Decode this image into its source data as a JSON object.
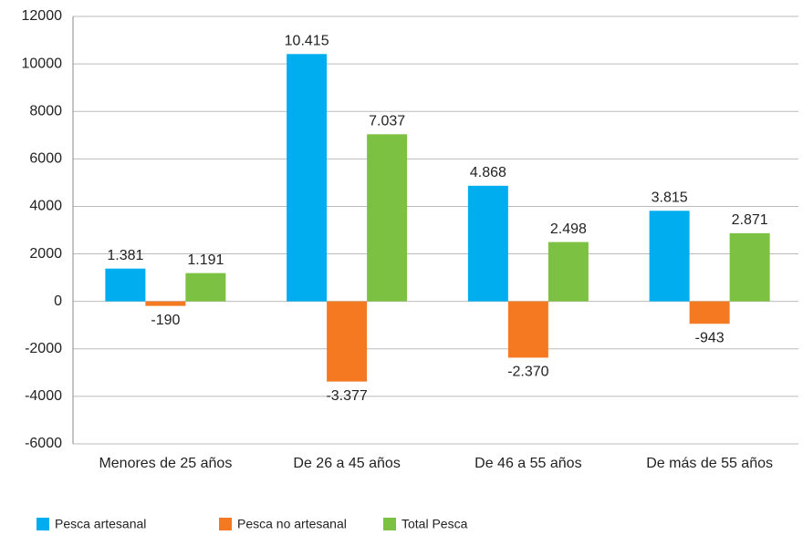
{
  "chart_data": {
    "type": "bar",
    "categories": [
      "Menores de 25 años",
      "De 26 a 45 años",
      "De 46 a 55 años",
      "De más de 55 años"
    ],
    "series": [
      {
        "name": "Pesca artesanal",
        "color": "#00aeef",
        "values": [
          1381,
          10415,
          4868,
          3815
        ],
        "value_labels": [
          "1.381",
          "10.415",
          "4.868",
          "3.815"
        ]
      },
      {
        "name": "Pesca no artesanal",
        "color": "#f47920",
        "values": [
          -190,
          -3377,
          -2370,
          -943
        ],
        "value_labels": [
          "-190",
          "-3.377",
          "-2.370",
          "-943"
        ]
      },
      {
        "name": "Total Pesca",
        "color": "#7dc142",
        "values": [
          1191,
          7037,
          2498,
          2871
        ],
        "value_labels": [
          "1.191",
          "7.037",
          "2.498",
          "2.871"
        ]
      }
    ],
    "ylim": [
      -6000,
      12000
    ],
    "yticks": [
      -6000,
      -4000,
      -2000,
      0,
      2000,
      4000,
      6000,
      8000,
      10000,
      12000
    ],
    "grid": true,
    "legend": "bottom"
  }
}
